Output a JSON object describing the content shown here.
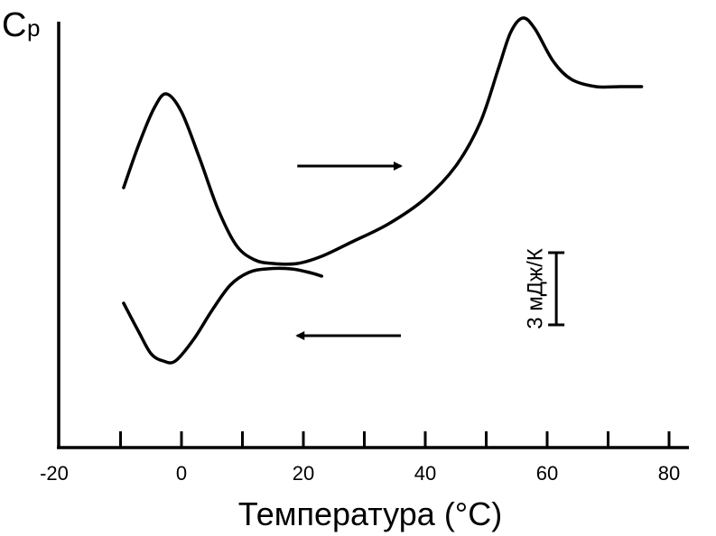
{
  "chart_data": {
    "type": "line",
    "ylabel_main": "C",
    "ylabel_sub": "p",
    "xlabel": "Температура (°С)",
    "xlim": [
      -20,
      85
    ],
    "x_ticks": [
      -20,
      0,
      20,
      40,
      60,
      80
    ],
    "x_minor_ticks": [
      -10,
      10,
      30,
      50,
      70
    ],
    "series": [
      {
        "direction": "heating",
        "points": [
          [
            -9.5,
            72
          ],
          [
            -7,
            84
          ],
          [
            -4.5,
            94
          ],
          [
            -2.5,
            98
          ],
          [
            0,
            93
          ],
          [
            3,
            80
          ],
          [
            6,
            66
          ],
          [
            9,
            56
          ],
          [
            12,
            52
          ],
          [
            15,
            51
          ],
          [
            19,
            51
          ],
          [
            23,
            53
          ],
          [
            28,
            57
          ],
          [
            34,
            62
          ],
          [
            40,
            69
          ],
          [
            45,
            78
          ],
          [
            49,
            90
          ],
          [
            52,
            105
          ],
          [
            54,
            115
          ],
          [
            56,
            119
          ],
          [
            58,
            116
          ],
          [
            61,
            107
          ],
          [
            64,
            102
          ],
          [
            68,
            100
          ],
          [
            72,
            100
          ],
          [
            75.5,
            100
          ]
        ]
      },
      {
        "direction": "cooling",
        "points": [
          [
            -9.5,
            40
          ],
          [
            -7,
            32
          ],
          [
            -5,
            26
          ],
          [
            -3,
            24
          ],
          [
            -1,
            24
          ],
          [
            2,
            30
          ],
          [
            5,
            38
          ],
          [
            8,
            45
          ],
          [
            11,
            48.5
          ],
          [
            14,
            49.5
          ],
          [
            18,
            49.5
          ],
          [
            21,
            48.5
          ],
          [
            23,
            47.5
          ]
        ]
      }
    ],
    "arrows": [
      {
        "direction": "right",
        "x_from": 19,
        "x_to": 36,
        "y": 78
      },
      {
        "direction": "left",
        "x_from": 36,
        "x_to": 19,
        "y": 31
      }
    ],
    "scale_bar": {
      "label": "3 мДж/К",
      "x": 61.5,
      "y_from": 54,
      "y_to": 34
    }
  }
}
